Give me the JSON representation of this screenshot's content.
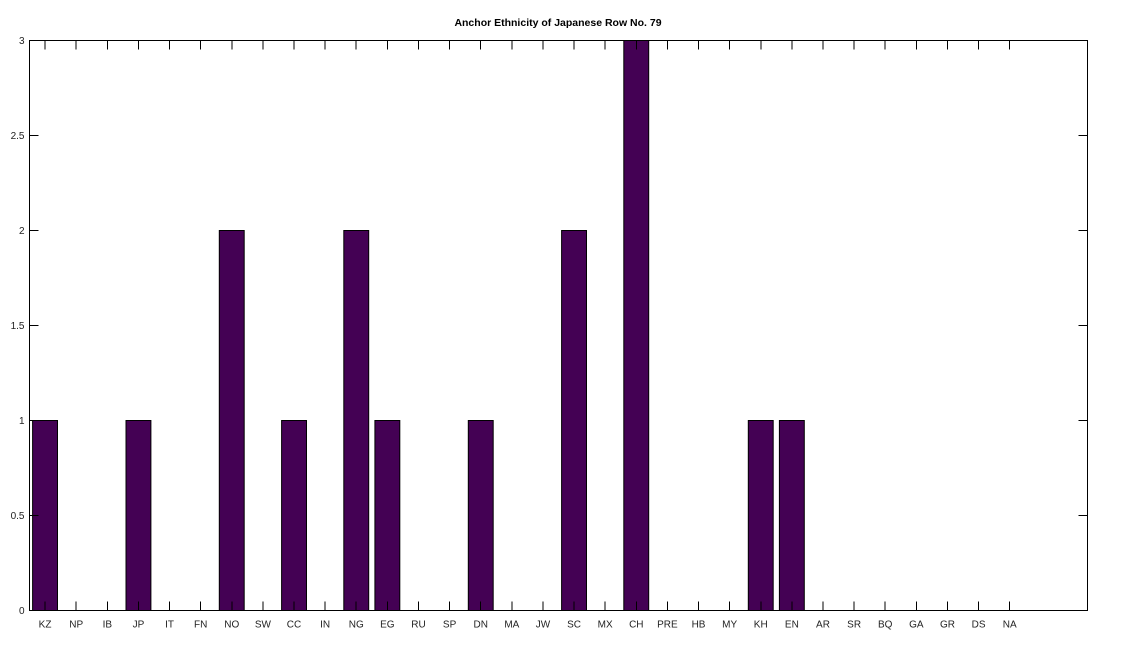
{
  "chart_data": {
    "type": "bar",
    "title": "Anchor Ethnicity of Japanese Row No. 79",
    "xlabel": "",
    "ylabel": "",
    "categories": [
      "KZ",
      "NP",
      "IB",
      "JP",
      "IT",
      "FN",
      "NO",
      "SW",
      "CC",
      "IN",
      "NG",
      "EG",
      "RU",
      "SP",
      "DN",
      "MA",
      "JW",
      "SC",
      "MX",
      "CH",
      "PRE",
      "HB",
      "MY",
      "KH",
      "EN",
      "AR",
      "SR",
      "BQ",
      "GA",
      "GR",
      "DS",
      "NA"
    ],
    "values": [
      1,
      0,
      0,
      1,
      0,
      0,
      2,
      0,
      1,
      0,
      2,
      1,
      0,
      0,
      1,
      0,
      0,
      2,
      0,
      3,
      0,
      0,
      0,
      1,
      1,
      0,
      0,
      0,
      0,
      0,
      0,
      0
    ],
    "ylim": [
      0,
      3
    ],
    "yticks": [
      "0",
      "0.5",
      "1",
      "1.5",
      "2",
      "2.5",
      "3"
    ],
    "xlim": [
      0.5,
      34.5
    ],
    "grid": false,
    "legend": "none",
    "bar_color": "#440154"
  }
}
